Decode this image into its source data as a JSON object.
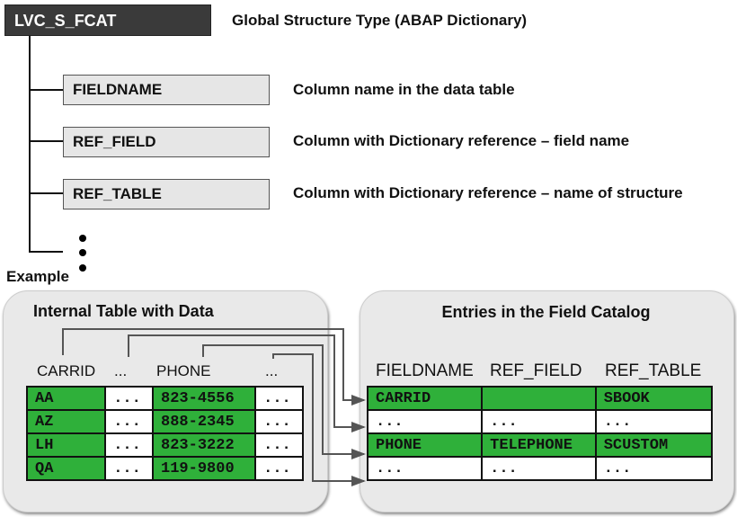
{
  "structure": {
    "name": "LVC_S_FCAT",
    "description": "Global Structure Type (ABAP Dictionary)"
  },
  "fields": [
    {
      "name": "FIELDNAME",
      "description": "Column name in the data table"
    },
    {
      "name": "REF_FIELD",
      "description": "Column with Dictionary reference – field name"
    },
    {
      "name": "REF_TABLE",
      "description": "Column with Dictionary reference – name of structure"
    }
  ],
  "example_label": "Example",
  "internal_table": {
    "title": "Internal Table with Data",
    "headers": [
      "CARRID",
      "...",
      "PHONE",
      "..."
    ],
    "rows": [
      [
        "AA",
        "...",
        "823-4556",
        "..."
      ],
      [
        "AZ",
        "...",
        "888-2345",
        "..."
      ],
      [
        "LH",
        "...",
        "823-3222",
        "..."
      ],
      [
        "QA",
        "...",
        "119-9800",
        "..."
      ]
    ]
  },
  "field_catalog": {
    "title": "Entries in the Field Catalog",
    "headers": [
      "FIELDNAME",
      "REF_FIELD",
      "REF_TABLE"
    ],
    "rows": [
      [
        "CARRID",
        "",
        "SBOOK"
      ],
      [
        "...",
        "...",
        "..."
      ],
      [
        "PHONE",
        "TELEPHONE",
        "SCUSTOM"
      ],
      [
        "...",
        "...",
        "..."
      ]
    ]
  },
  "colors": {
    "highlight": "#2fb03a",
    "structure_box": "#3a3a3a",
    "panel": "#e9e9e9"
  }
}
